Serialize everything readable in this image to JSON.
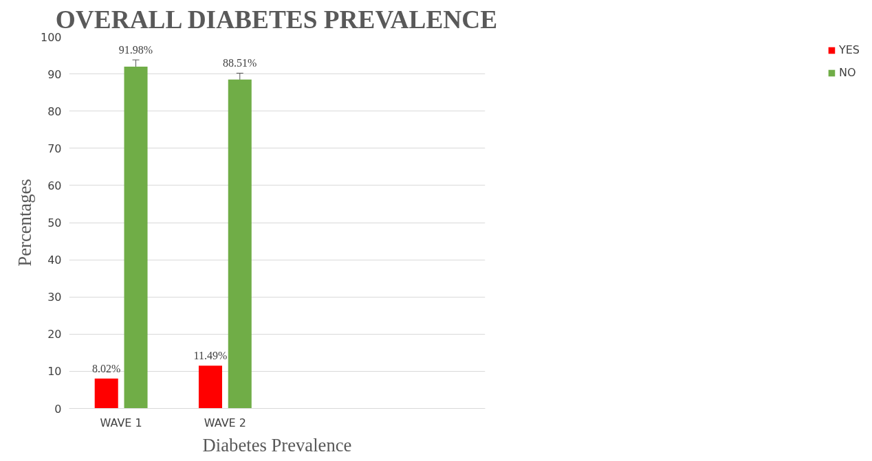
{
  "chart_data": {
    "type": "bar",
    "title": "OVERALL DIABETES PREVALENCE",
    "xlabel": "Diabetes Prevalence",
    "ylabel": "Percentages",
    "categories": [
      "WAVE 1",
      "WAVE 2",
      null,
      null
    ],
    "series": [
      {
        "name": "YES",
        "color": "#ff0000",
        "values": [
          8.02,
          11.49,
          null,
          null
        ],
        "value_labels": [
          "8.02%",
          "11.49%",
          null,
          null
        ]
      },
      {
        "name": "NO",
        "color": "#70ad47",
        "values": [
          91.98,
          88.51,
          null,
          null
        ],
        "value_labels": [
          "91.98%",
          "88.51%",
          null,
          null
        ],
        "errors": [
          1.8,
          1.7,
          null,
          null
        ]
      }
    ],
    "ylim": [
      0,
      100
    ],
    "yticks": [
      0,
      10,
      20,
      30,
      40,
      50,
      60,
      70,
      80,
      90,
      100
    ],
    "grid": "y",
    "legend": "right"
  }
}
